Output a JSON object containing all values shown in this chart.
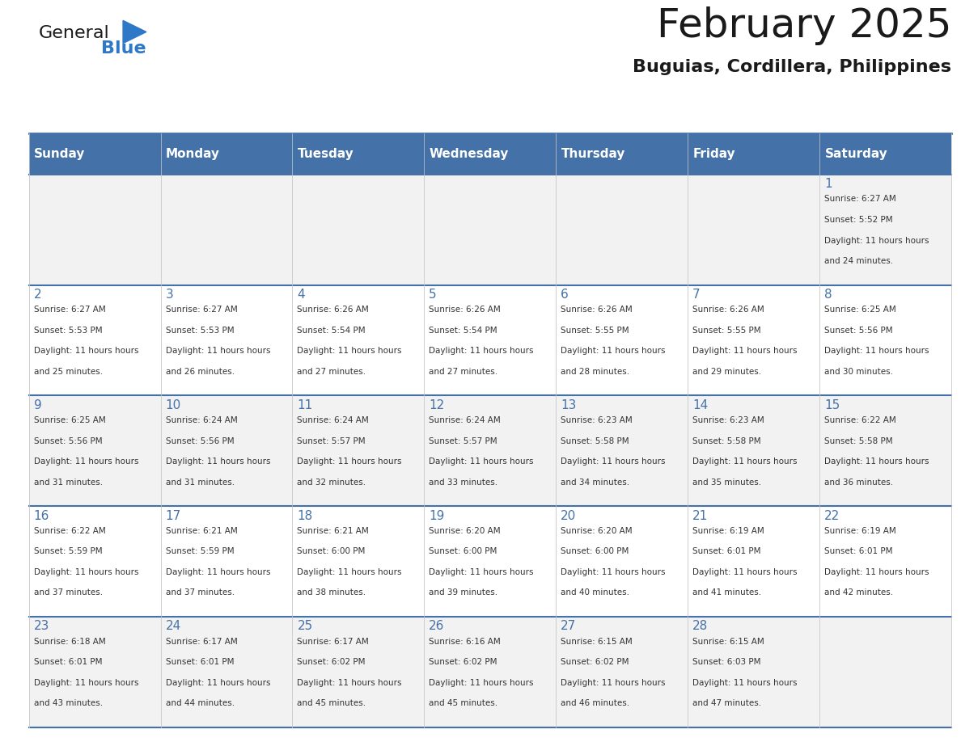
{
  "title": "February 2025",
  "subtitle": "Buguias, Cordillera, Philippines",
  "header_color": "#4472A8",
  "header_text_color": "#FFFFFF",
  "cell_bg_color_light": "#F2F2F2",
  "cell_bg_color_white": "#FFFFFF",
  "day_headers": [
    "Sunday",
    "Monday",
    "Tuesday",
    "Wednesday",
    "Thursday",
    "Friday",
    "Saturday"
  ],
  "title_color": "#1a1a1a",
  "subtitle_color": "#1a1a1a",
  "line_color": "#4472A8",
  "day_number_color": "#4472A8",
  "text_color": "#333333",
  "logo_general_color": "#1a1a1a",
  "logo_blue_color": "#2E78C7",
  "calendar_data": [
    [
      null,
      null,
      null,
      null,
      null,
      null,
      1
    ],
    [
      2,
      3,
      4,
      5,
      6,
      7,
      8
    ],
    [
      9,
      10,
      11,
      12,
      13,
      14,
      15
    ],
    [
      16,
      17,
      18,
      19,
      20,
      21,
      22
    ],
    [
      23,
      24,
      25,
      26,
      27,
      28,
      null
    ]
  ],
  "sunrise_data": {
    "1": {
      "sunrise": "6:27 AM",
      "sunset": "5:52 PM",
      "daylight": "11 hours and 24 minutes."
    },
    "2": {
      "sunrise": "6:27 AM",
      "sunset": "5:53 PM",
      "daylight": "11 hours and 25 minutes."
    },
    "3": {
      "sunrise": "6:27 AM",
      "sunset": "5:53 PM",
      "daylight": "11 hours and 26 minutes."
    },
    "4": {
      "sunrise": "6:26 AM",
      "sunset": "5:54 PM",
      "daylight": "11 hours and 27 minutes."
    },
    "5": {
      "sunrise": "6:26 AM",
      "sunset": "5:54 PM",
      "daylight": "11 hours and 27 minutes."
    },
    "6": {
      "sunrise": "6:26 AM",
      "sunset": "5:55 PM",
      "daylight": "11 hours and 28 minutes."
    },
    "7": {
      "sunrise": "6:26 AM",
      "sunset": "5:55 PM",
      "daylight": "11 hours and 29 minutes."
    },
    "8": {
      "sunrise": "6:25 AM",
      "sunset": "5:56 PM",
      "daylight": "11 hours and 30 minutes."
    },
    "9": {
      "sunrise": "6:25 AM",
      "sunset": "5:56 PM",
      "daylight": "11 hours and 31 minutes."
    },
    "10": {
      "sunrise": "6:24 AM",
      "sunset": "5:56 PM",
      "daylight": "11 hours and 31 minutes."
    },
    "11": {
      "sunrise": "6:24 AM",
      "sunset": "5:57 PM",
      "daylight": "11 hours and 32 minutes."
    },
    "12": {
      "sunrise": "6:24 AM",
      "sunset": "5:57 PM",
      "daylight": "11 hours and 33 minutes."
    },
    "13": {
      "sunrise": "6:23 AM",
      "sunset": "5:58 PM",
      "daylight": "11 hours and 34 minutes."
    },
    "14": {
      "sunrise": "6:23 AM",
      "sunset": "5:58 PM",
      "daylight": "11 hours and 35 minutes."
    },
    "15": {
      "sunrise": "6:22 AM",
      "sunset": "5:58 PM",
      "daylight": "11 hours and 36 minutes."
    },
    "16": {
      "sunrise": "6:22 AM",
      "sunset": "5:59 PM",
      "daylight": "11 hours and 37 minutes."
    },
    "17": {
      "sunrise": "6:21 AM",
      "sunset": "5:59 PM",
      "daylight": "11 hours and 37 minutes."
    },
    "18": {
      "sunrise": "6:21 AM",
      "sunset": "6:00 PM",
      "daylight": "11 hours and 38 minutes."
    },
    "19": {
      "sunrise": "6:20 AM",
      "sunset": "6:00 PM",
      "daylight": "11 hours and 39 minutes."
    },
    "20": {
      "sunrise": "6:20 AM",
      "sunset": "6:00 PM",
      "daylight": "11 hours and 40 minutes."
    },
    "21": {
      "sunrise": "6:19 AM",
      "sunset": "6:01 PM",
      "daylight": "11 hours and 41 minutes."
    },
    "22": {
      "sunrise": "6:19 AM",
      "sunset": "6:01 PM",
      "daylight": "11 hours and 42 minutes."
    },
    "23": {
      "sunrise": "6:18 AM",
      "sunset": "6:01 PM",
      "daylight": "11 hours and 43 minutes."
    },
    "24": {
      "sunrise": "6:17 AM",
      "sunset": "6:01 PM",
      "daylight": "11 hours and 44 minutes."
    },
    "25": {
      "sunrise": "6:17 AM",
      "sunset": "6:02 PM",
      "daylight": "11 hours and 45 minutes."
    },
    "26": {
      "sunrise": "6:16 AM",
      "sunset": "6:02 PM",
      "daylight": "11 hours and 45 minutes."
    },
    "27": {
      "sunrise": "6:15 AM",
      "sunset": "6:02 PM",
      "daylight": "11 hours and 46 minutes."
    },
    "28": {
      "sunrise": "6:15 AM",
      "sunset": "6:03 PM",
      "daylight": "11 hours and 47 minutes."
    }
  }
}
